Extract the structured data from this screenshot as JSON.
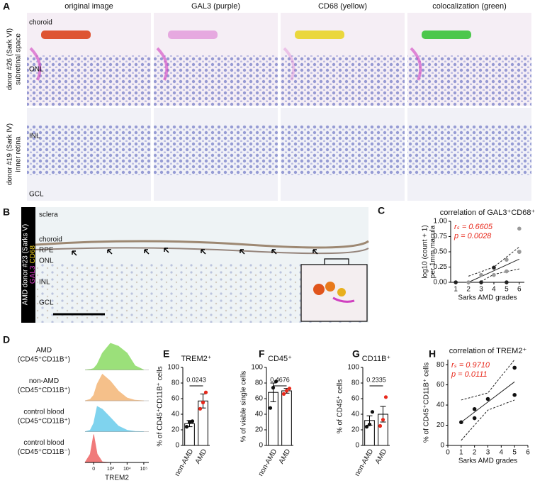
{
  "panel_a": {
    "letter": "A",
    "column_titles": [
      "original image",
      "GAL3 (purple)",
      "CD68 (yellow)",
      "colocalization (green)"
    ],
    "row_labels": [
      [
        "donor #26 (Sark VI)",
        "subretinal space"
      ],
      [
        "donor #19 (Sark IV)",
        "inner retina"
      ]
    ],
    "layer_labels": [
      [
        "choroid",
        "ONL"
      ],
      [
        "INL",
        "GCL"
      ]
    ]
  },
  "panel_b": {
    "letter": "B",
    "label": "AMD donor #23 (Sarks V)",
    "stain_labels": [
      "GAL3",
      "CD68"
    ],
    "layer_labels": [
      "sclera",
      "choroid",
      "RPE",
      "ONL",
      "INL",
      "GCL"
    ]
  },
  "chart_data": [
    {
      "panel": "C",
      "type": "scatter",
      "title": "correlation of GAL3⁺CD68⁺",
      "xlabel": "Sarks AMD grades",
      "ylabel": [
        "log10 (count + 1)",
        "per 1mm macula"
      ],
      "annotations": [
        "rₛ = 0.6605",
        "p = 0.0028"
      ],
      "annotation_color": "#e8291c",
      "x": [
        1,
        2,
        3,
        3,
        4,
        4,
        5,
        5,
        5,
        6,
        6,
        6
      ],
      "values": [
        0,
        0,
        0,
        0.12,
        0.24,
        0.12,
        0,
        0.18,
        0.37,
        0.5,
        0.88,
        0.5
      ],
      "colors": [
        "#222222",
        "#999999",
        "#222222",
        "#999999",
        "#222222",
        "#999999",
        "#222222",
        "#999999",
        "#999999",
        "#222222",
        "#999999",
        "#999999"
      ],
      "fit_x": [
        2,
        4,
        6
      ],
      "fit": [
        0.0,
        0.19,
        0.38
      ],
      "ci_upper": [
        0.1,
        0.25,
        0.58
      ],
      "ci_lower": [
        -0.1,
        0.13,
        0.22
      ],
      "xlim": [
        0.6,
        6.4
      ],
      "xticks": [
        1,
        2,
        3,
        4,
        5,
        6
      ],
      "ylim": [
        0,
        1
      ],
      "yticks": [
        {
          "value": 0,
          "label": "0.00"
        },
        {
          "value": 0.25,
          "label": "0.25"
        },
        {
          "value": 0.5,
          "label": "0.50"
        },
        {
          "value": 0.75,
          "label": "0.75"
        },
        {
          "value": 1,
          "label": "1.00"
        }
      ]
    },
    {
      "panel": "D",
      "type": "ridgeline",
      "xlabel": "TREM2",
      "x": [
        -300,
        -100,
        0,
        100,
        300,
        1000,
        3000,
        10000,
        30000,
        100000
      ],
      "series": [
        {
          "name": "AMD",
          "gate": "(CD45⁺CD11B⁺)",
          "color": "#9be07a",
          "values": [
            0,
            2,
            5,
            20,
            60,
            95,
            85,
            60,
            15,
            0
          ]
        },
        {
          "name": "non-AMD",
          "gate": "(CD45⁺CD11B⁺)",
          "color": "#f5c08a",
          "values": [
            0,
            5,
            20,
            60,
            95,
            70,
            35,
            10,
            2,
            0
          ]
        },
        {
          "name": "control blood",
          "gate": "(CD45⁺CD11B⁺)",
          "color": "#7fd3ee",
          "values": [
            0,
            5,
            30,
            90,
            80,
            50,
            20,
            5,
            1,
            0
          ]
        },
        {
          "name": "control blood",
          "gate": "(CD45⁺CD11B⁻)",
          "color": "#f07a7a",
          "values": [
            0,
            30,
            100,
            30,
            2,
            0,
            0,
            0,
            0,
            0
          ]
        }
      ],
      "xlim": [
        -300,
        200000
      ],
      "ylim": [
        0,
        100
      ],
      "xticks": [
        0,
        {
          "value": 1000,
          "label": "10³"
        },
        {
          "value": 10000,
          "label": "10⁴"
        },
        {
          "value": 100000,
          "label": "10⁵"
        }
      ]
    },
    {
      "panel": "E",
      "type": "bar",
      "title": "TREM2⁺",
      "ylabel": "% of CD45⁺CD11B⁺ cells",
      "categories": [
        "non-AMD",
        "AMD"
      ],
      "values": [
        28,
        57
      ],
      "errors": [
        4,
        9
      ],
      "points": [
        [
          24,
          30,
          31
        ],
        [
          47,
          55,
          68
        ]
      ],
      "point_colors": [
        "#111111",
        "#e8291c"
      ],
      "ylim": [
        0,
        100
      ],
      "yticks": [
        0,
        20,
        40,
        60,
        80,
        100
      ],
      "p_value": "0.0243"
    },
    {
      "panel": "F",
      "type": "bar",
      "title": "CD45⁺",
      "ylabel": "% of viable single cells",
      "categories": [
        "non-AMD",
        "AMD"
      ],
      "values": [
        68,
        70
      ],
      "errors": [
        12,
        3
      ],
      "points": [
        [
          48,
          74,
          82
        ],
        [
          66,
          70,
          73
        ]
      ],
      "point_colors": [
        "#111111",
        "#e8291c"
      ],
      "ylim": [
        0,
        100
      ],
      "yticks": [
        0,
        20,
        40,
        60,
        80,
        100
      ],
      "p_value": "0.4676"
    },
    {
      "panel": "G",
      "type": "bar",
      "title": "CD11B⁺",
      "ylabel": "% of CD45⁺ cells",
      "categories": [
        "non-AMD",
        "AMD"
      ],
      "values": [
        32,
        40
      ],
      "errors": [
        6,
        10
      ],
      "points": [
        [
          24,
          27,
          43
        ],
        [
          25,
          33,
          62
        ]
      ],
      "point_colors": [
        "#111111",
        "#e8291c"
      ],
      "ylim": [
        0,
        100
      ],
      "yticks": [
        0,
        20,
        40,
        60,
        80,
        100
      ],
      "p_value": "0.2335"
    },
    {
      "panel": "H",
      "type": "scatter",
      "title": "correlation of TREM2⁺",
      "xlabel": "Sarks AMD grades",
      "ylabel": [
        "% of CD45⁺CD11B⁺ cells"
      ],
      "annotations": [
        "rₛ = 0.9710",
        "p = 0.0111"
      ],
      "annotation_color": "#e8291c",
      "x": [
        1,
        2,
        2,
        3,
        5,
        5
      ],
      "values": [
        23,
        27,
        36,
        46,
        50,
        77
      ],
      "colors": [
        "#111111",
        "#111111",
        "#111111",
        "#111111",
        "#111111",
        "#111111"
      ],
      "fit_x": [
        1,
        3,
        5
      ],
      "fit": [
        23,
        43,
        63
      ],
      "ci_upper": [
        45,
        52,
        85
      ],
      "ci_lower": [
        5,
        35,
        45
      ],
      "xlim": [
        0,
        6
      ],
      "xticks": [
        0,
        1,
        2,
        3,
        4,
        5,
        6
      ],
      "ylim": [
        0,
        85
      ],
      "yticks": [
        0,
        20,
        40,
        60,
        80
      ]
    }
  ]
}
